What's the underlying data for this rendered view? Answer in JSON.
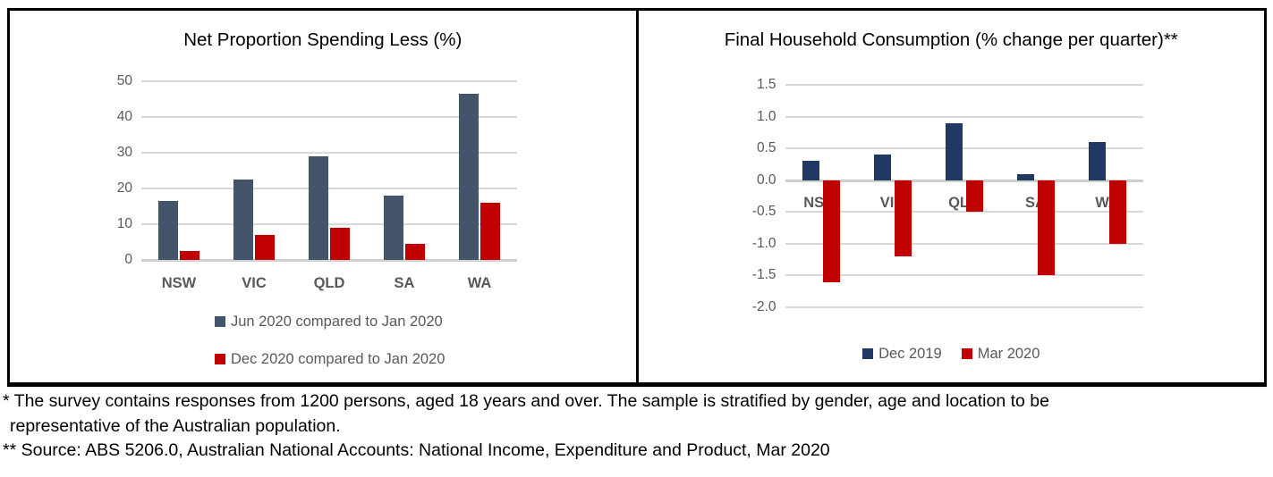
{
  "chart_data": [
    {
      "type": "bar",
      "title": "Net Proportion Spending Less (%)",
      "categories": [
        "NSW",
        "VIC",
        "QLD",
        "SA",
        "WA"
      ],
      "series": [
        {
          "name": "Jun 2020 compared to Jan 2020",
          "color": "#44546A",
          "values": [
            16.5,
            22.5,
            29,
            18,
            46.5
          ]
        },
        {
          "name": "Dec 2020 compared to Jan 2020",
          "color": "#C00000",
          "values": [
            2.5,
            7,
            9,
            4.5,
            16
          ]
        }
      ],
      "y_axis": {
        "min": 0,
        "max": 50,
        "step": 10,
        "decimals": 0
      },
      "ylim": [
        0,
        50
      ],
      "grid": true,
      "legend_position": "bottom-stacked"
    },
    {
      "type": "bar",
      "title": "Final Household Consumption (% change per quarter)**",
      "categories": [
        "NSW",
        "VIC",
        "QLD",
        "SA",
        "WA"
      ],
      "series": [
        {
          "name": "Dec 2019",
          "color": "#1F3864",
          "values": [
            0.3,
            0.4,
            0.9,
            0.1,
            0.6
          ]
        },
        {
          "name": "Mar 2020",
          "color": "#C00000",
          "values": [
            -1.6,
            -1.2,
            -0.5,
            -1.5,
            -1.0
          ]
        }
      ],
      "y_axis": {
        "min": -2.0,
        "max": 1.5,
        "step": 0.5,
        "decimals": 1
      },
      "ylim": [
        -2.0,
        1.5
      ],
      "grid": true,
      "legend_position": "bottom-horizontal"
    }
  ],
  "footnotes": {
    "note1_line1": "* The survey contains responses from 1200 persons, aged 18 years and over.  The sample is stratified by gender, age and location to be",
    "note1_line2": "representative of the Australian population.",
    "note2": "** Source: ABS 5206.0, Australian National Accounts: National Income, Expenditure and Product, Mar 2020"
  },
  "colors": {
    "slate": "#44546A",
    "navy": "#1F3864",
    "red": "#C00000",
    "grid": "#D9D9D9",
    "axis": "#CFCFCF",
    "tick_text": "#595959",
    "category_text": "#595959",
    "legend_text": "#595959",
    "title_text": "#000000",
    "border": "#000000"
  }
}
